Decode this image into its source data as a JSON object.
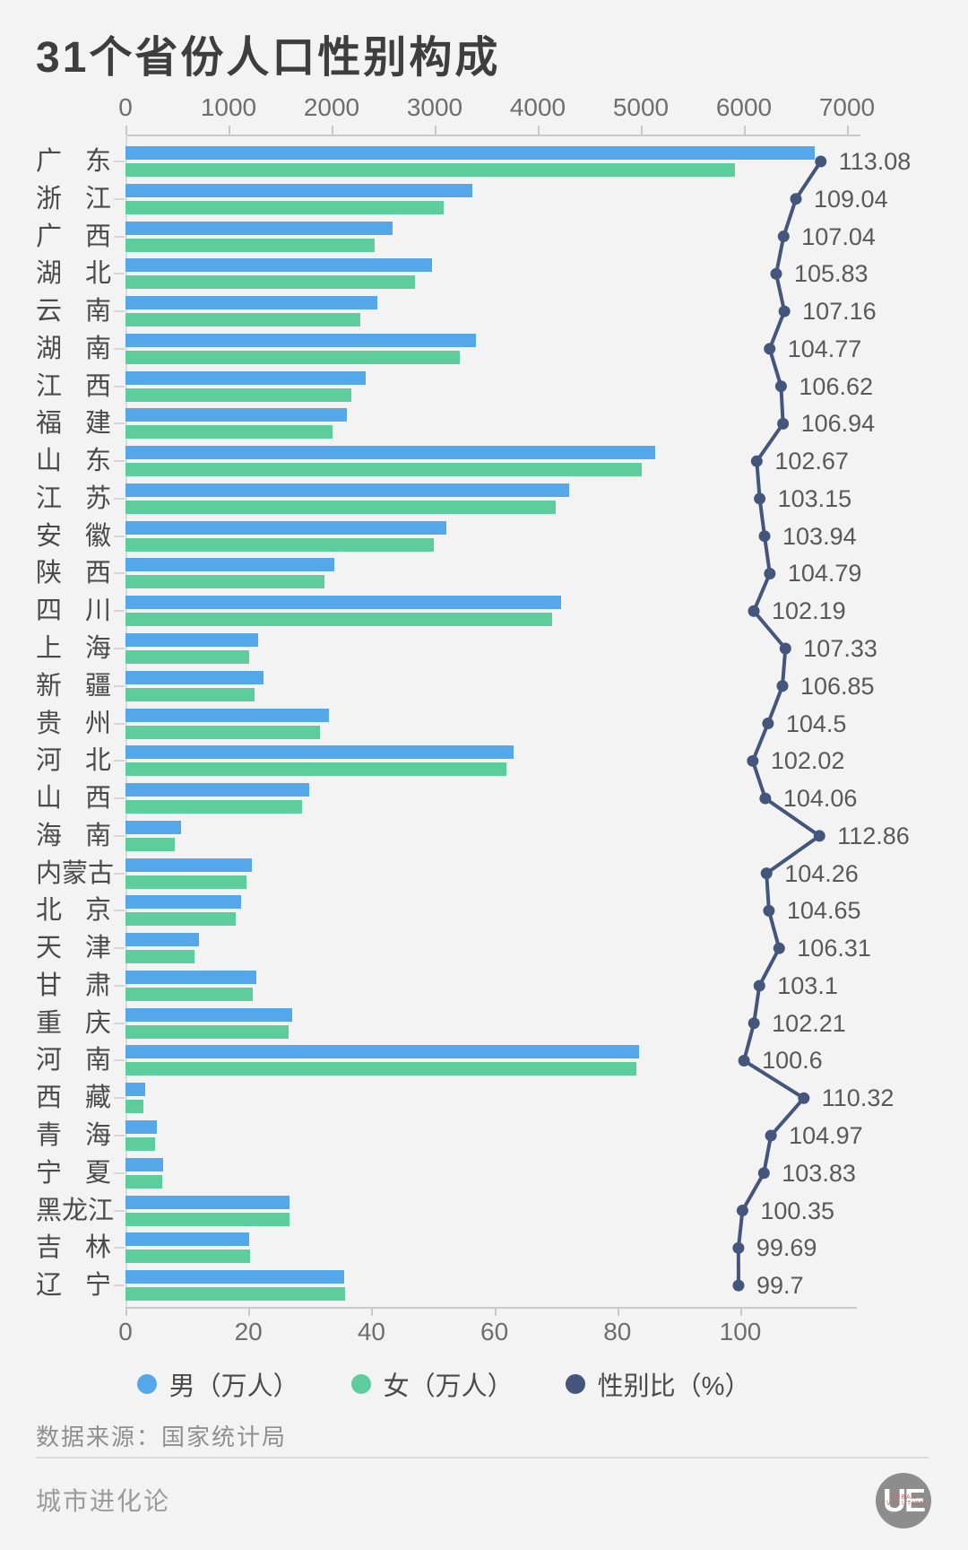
{
  "page": {
    "background": "#f3f3f3"
  },
  "chart_data": {
    "type": "bar",
    "overlay": "line",
    "orientation": "horizontal",
    "title": "31个省份人口性别构成",
    "categories": [
      "广东",
      "浙江",
      "广西",
      "湖北",
      "云南",
      "湖南",
      "江西",
      "福建",
      "山东",
      "江苏",
      "安徽",
      "陕西",
      "四川",
      "上海",
      "新疆",
      "贵州",
      "河北",
      "山西",
      "海南",
      "内蒙古",
      "北京",
      "天津",
      "甘肃",
      "重庆",
      "河南",
      "西藏",
      "青海",
      "宁夏",
      "黑龙江",
      "吉林",
      "辽宁"
    ],
    "series": [
      {
        "name": "男（万人）",
        "kind": "bar",
        "color": "#54a7e8",
        "values": [
          6687,
          3367,
          2591,
          2971,
          2443,
          3400,
          2333,
          2146,
          5143,
          4303,
          3113,
          2022,
          4228,
          1288,
          1335,
          1971,
          3769,
          1781,
          535,
          1227,
          1120,
          714,
          1270,
          1620,
          4983,
          191,
          304,
          367,
          1595,
          1202,
          2126
        ]
      },
      {
        "name": "女（万人）",
        "kind": "bar",
        "color": "#5dcd9e",
        "values": [
          5914,
          3088,
          2421,
          2807,
          2280,
          3245,
          2188,
          2007,
          5009,
          4172,
          2995,
          1930,
          4137,
          1200,
          1249,
          1886,
          3694,
          1712,
          474,
          1177,
          1070,
          672,
          1232,
          1585,
          4953,
          173,
          290,
          353,
          1589,
          1206,
          2132
        ]
      },
      {
        "name": "性别比（%）",
        "kind": "line",
        "color": "#44567c",
        "values": [
          "113.08",
          "109.04",
          "107.04",
          "105.83",
          "107.16",
          "104.77",
          "106.62",
          "106.94",
          "102.67",
          "103.15",
          "103.94",
          "104.79",
          "102.19",
          "107.33",
          "106.85",
          "104.5",
          "102.02",
          "104.06",
          "112.86",
          "104.26",
          "104.65",
          "106.31",
          "103.1",
          "102.21",
          "100.6",
          "110.32",
          "104.97",
          "103.83",
          "100.35",
          "99.69",
          "99.7"
        ]
      }
    ],
    "top_axis": {
      "ticks": [
        0,
        1000,
        2000,
        3000,
        4000,
        5000,
        6000,
        7000
      ],
      "range": [
        0,
        7130
      ]
    },
    "bottom_axis": {
      "ticks": [
        0,
        20,
        40,
        60,
        80,
        100
      ],
      "range": [
        0,
        119
      ]
    },
    "legend_position": "bottom",
    "grid": "off"
  },
  "footer": {
    "source": "数据来源：国家统计局",
    "brand": "城市进化论",
    "logo_text": "UE",
    "logo_subtitle": "URBAN EVOLUTION"
  }
}
